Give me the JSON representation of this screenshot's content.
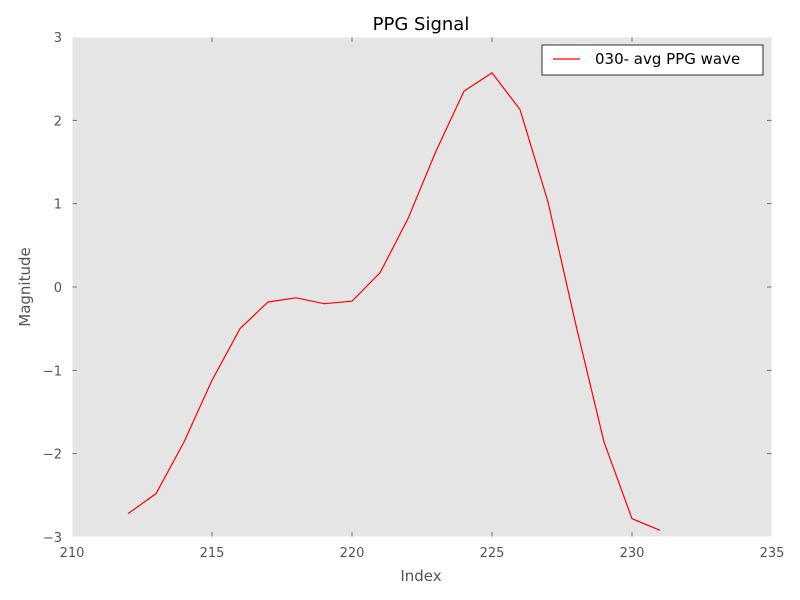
{
  "chart_data": {
    "type": "line",
    "title": "PPG Signal",
    "xlabel": "Index",
    "ylabel": "Magnitude",
    "xlim": [
      210,
      235
    ],
    "ylim": [
      -3,
      3
    ],
    "xticks": [
      210,
      215,
      220,
      225,
      230,
      235
    ],
    "xtick_labels": [
      "210",
      "215",
      "220",
      "225",
      "230",
      "235"
    ],
    "yticks": [
      -3,
      -2,
      -1,
      0,
      1,
      2,
      3
    ],
    "ytick_labels": [
      "−3",
      "−2",
      "−1",
      "0",
      "1",
      "2",
      "3"
    ],
    "grid": false,
    "legend_position": "top-right",
    "background_color": "#e5e5e5",
    "series": [
      {
        "name": "030- avg PPG wave",
        "color": "#ff0000",
        "x": [
          212,
          213,
          214,
          215,
          216,
          217,
          218,
          219,
          220,
          221,
          222,
          223,
          224,
          225,
          226,
          227,
          228,
          229,
          230,
          231
        ],
        "y": [
          -2.72,
          -2.48,
          -1.86,
          -1.12,
          -0.5,
          -0.18,
          -0.13,
          -0.2,
          -0.17,
          0.17,
          0.82,
          1.63,
          2.35,
          2.57,
          2.13,
          1.02,
          -0.46,
          -1.86,
          -2.78,
          -2.92
        ]
      }
    ]
  }
}
